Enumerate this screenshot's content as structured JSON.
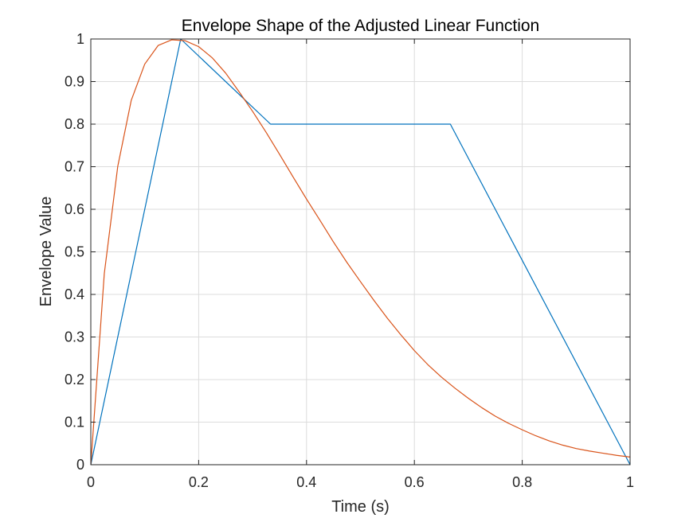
{
  "chart_data": {
    "type": "line",
    "title": "Envelope Shape of the Adjusted Linear Function",
    "xlabel": "Time (s)",
    "ylabel": "Envelope Value",
    "xlim": [
      0,
      1
    ],
    "ylim": [
      0,
      1
    ],
    "xticks": [
      0,
      0.2,
      0.4,
      0.6,
      0.8,
      1
    ],
    "xtick_labels": [
      "0",
      "0.2",
      "0.4",
      "0.6",
      "0.8",
      "1"
    ],
    "yticks": [
      0,
      0.1,
      0.2,
      0.3,
      0.4,
      0.5,
      0.6,
      0.7,
      0.8,
      0.9,
      1
    ],
    "ytick_labels": [
      "0",
      "0.1",
      "0.2",
      "0.3",
      "0.4",
      "0.5",
      "0.6",
      "0.7",
      "0.8",
      "0.9",
      "1"
    ],
    "grid": true,
    "box": true,
    "series": [
      {
        "color": "#0072BD",
        "x": [
          0,
          0.1667,
          0.3333,
          0.6667,
          1.0
        ],
        "y": [
          0,
          1.0,
          0.8,
          0.8,
          0.0
        ]
      },
      {
        "color": "#D95319",
        "x": [
          0,
          0.025,
          0.05,
          0.075,
          0.1,
          0.125,
          0.15,
          0.175,
          0.2,
          0.225,
          0.25,
          0.275,
          0.3,
          0.325,
          0.35,
          0.375,
          0.4,
          0.425,
          0.45,
          0.475,
          0.5,
          0.525,
          0.55,
          0.575,
          0.6,
          0.625,
          0.65,
          0.675,
          0.7,
          0.725,
          0.75,
          0.775,
          0.8,
          0.825,
          0.85,
          0.875,
          0.9,
          0.925,
          0.95,
          0.975,
          1.0
        ],
        "y": [
          0,
          0.449,
          0.701,
          0.856,
          0.941,
          0.985,
          0.998,
          0.996,
          0.982,
          0.956,
          0.92,
          0.876,
          0.83,
          0.781,
          0.729,
          0.676,
          0.624,
          0.574,
          0.523,
          0.475,
          0.43,
          0.386,
          0.344,
          0.305,
          0.268,
          0.235,
          0.206,
          0.18,
          0.156,
          0.134,
          0.114,
          0.097,
          0.082,
          0.068,
          0.056,
          0.046,
          0.038,
          0.032,
          0.027,
          0.022,
          0.018
        ]
      }
    ]
  }
}
